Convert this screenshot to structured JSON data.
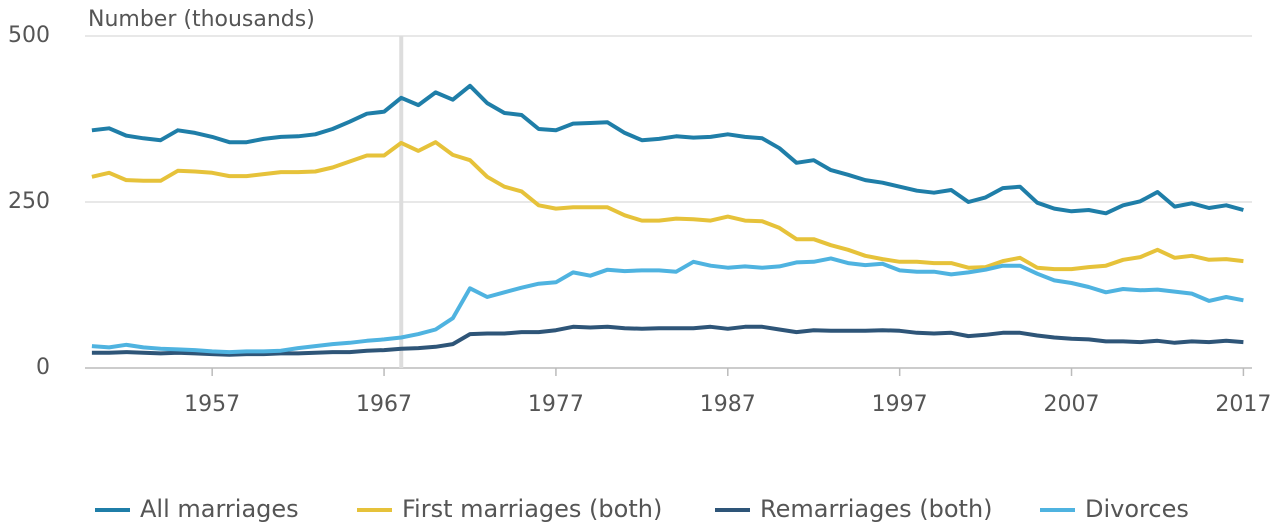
{
  "chart_data": {
    "type": "line",
    "y_label": "Number (thousands)",
    "x": [
      1950,
      1951,
      1952,
      1953,
      1954,
      1955,
      1956,
      1957,
      1958,
      1959,
      1960,
      1961,
      1962,
      1963,
      1964,
      1965,
      1966,
      1967,
      1968,
      1969,
      1970,
      1971,
      1972,
      1973,
      1974,
      1975,
      1976,
      1977,
      1978,
      1979,
      1980,
      1981,
      1982,
      1983,
      1984,
      1985,
      1986,
      1987,
      1988,
      1989,
      1990,
      1991,
      1992,
      1993,
      1994,
      1995,
      1996,
      1997,
      1998,
      1999,
      2000,
      2001,
      2002,
      2003,
      2004,
      2005,
      2006,
      2007,
      2008,
      2009,
      2010,
      2011,
      2012,
      2013,
      2014,
      2015,
      2016,
      2017
    ],
    "series": [
      {
        "name": "All marriages",
        "color": "#1f7ea8",
        "values": [
          358,
          361,
          350,
          346,
          343,
          358,
          354,
          348,
          340,
          340,
          345,
          348,
          349,
          352,
          360,
          371,
          383,
          386,
          407,
          396,
          415,
          404,
          425,
          399,
          384,
          381,
          360,
          358,
          368,
          369,
          370,
          354,
          343,
          345,
          349,
          347,
          348,
          352,
          348,
          346,
          331,
          309,
          313,
          298,
          291,
          283,
          279,
          273,
          267,
          264,
          268,
          250,
          257,
          271,
          273,
          249,
          240,
          236,
          238,
          233,
          245,
          251,
          265,
          243,
          248,
          241,
          245,
          238
        ]
      },
      {
        "name": "First marriages (both)",
        "color": "#e6c23a",
        "values": [
          288,
          294,
          283,
          282,
          282,
          297,
          296,
          294,
          289,
          289,
          292,
          295,
          295,
          296,
          302,
          311,
          320,
          320,
          339,
          327,
          340,
          321,
          313,
          288,
          273,
          266,
          245,
          240,
          242,
          242,
          242,
          230,
          222,
          222,
          225,
          224,
          222,
          228,
          222,
          221,
          211,
          194,
          194,
          185,
          178,
          169,
          164,
          160,
          160,
          158,
          158,
          151,
          152,
          161,
          166,
          151,
          149,
          149,
          152,
          154,
          163,
          167,
          178,
          166,
          169,
          163,
          164,
          161
        ]
      },
      {
        "name": "Remarriages (both)",
        "color": "#2e5578",
        "values": [
          23,
          23,
          24,
          23,
          22,
          23,
          22,
          21,
          20,
          21,
          21,
          22,
          22,
          23,
          24,
          24,
          26,
          27,
          29,
          30,
          32,
          36,
          51,
          52,
          52,
          54,
          54,
          57,
          62,
          61,
          62,
          60,
          59,
          60,
          60,
          60,
          62,
          59,
          62,
          62,
          58,
          54,
          57,
          56,
          56,
          56,
          57,
          56,
          53,
          52,
          53,
          48,
          50,
          53,
          53,
          49,
          46,
          44,
          43,
          40,
          40,
          39,
          41,
          38,
          40,
          39,
          41,
          39
        ]
      },
      {
        "name": "Divorces",
        "color": "#4fb3e0",
        "values": [
          33,
          31,
          35,
          31,
          29,
          28,
          27,
          25,
          24,
          25,
          25,
          26,
          30,
          33,
          36,
          38,
          41,
          43,
          46,
          51,
          58,
          75,
          120,
          107,
          114,
          121,
          127,
          129,
          144,
          139,
          148,
          146,
          147,
          147,
          145,
          160,
          154,
          151,
          153,
          151,
          153,
          159,
          160,
          165,
          158,
          155,
          157,
          147,
          145,
          145,
          141,
          144,
          148,
          154,
          154,
          142,
          132,
          128,
          122,
          114,
          119,
          117,
          118,
          115,
          112,
          101,
          107,
          102
        ]
      }
    ],
    "xlim": [
      1949.6,
      2017.5
    ],
    "xticks": [
      1957,
      1967,
      1977,
      1987,
      1997,
      2007,
      2017
    ],
    "ylim": [
      0,
      500
    ],
    "yticks": [
      0,
      250,
      500
    ],
    "grid": true,
    "highlight_x": 1968,
    "legend": "bottom"
  }
}
